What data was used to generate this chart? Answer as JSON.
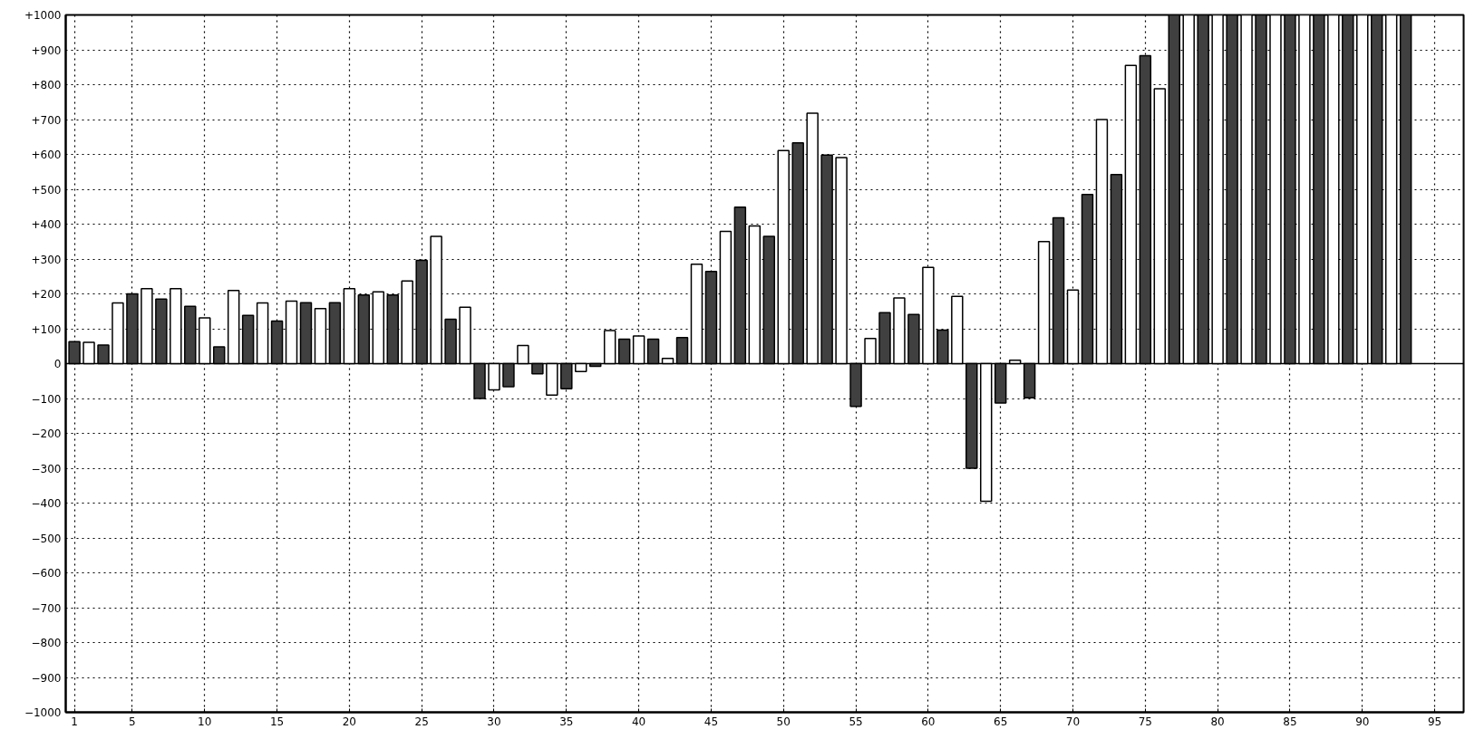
{
  "chart_data": {
    "type": "bar",
    "x": [
      1,
      2,
      3,
      4,
      5,
      6,
      7,
      8,
      9,
      10,
      11,
      12,
      13,
      14,
      15,
      16,
      17,
      18,
      19,
      20,
      21,
      22,
      23,
      24,
      25,
      26,
      27,
      28,
      29,
      30,
      31,
      32,
      33,
      34,
      35,
      36,
      37,
      38,
      39,
      40,
      41,
      42,
      43,
      44,
      45,
      46,
      47,
      48,
      49,
      50,
      51,
      52,
      53,
      54,
      55,
      56,
      57,
      58,
      59,
      60,
      61,
      62,
      63,
      64,
      65,
      66,
      67,
      68,
      69,
      70,
      71,
      72,
      73,
      74,
      75,
      76,
      77,
      78,
      79,
      80,
      81,
      82,
      83,
      84,
      85,
      86,
      87,
      88,
      89,
      90,
      91,
      92,
      93
    ],
    "values": [
      63,
      61,
      53,
      174,
      200,
      215,
      185,
      215,
      164,
      131,
      48,
      210,
      138,
      174,
      122,
      179,
      175,
      158,
      175,
      215,
      197,
      206,
      197,
      237,
      296,
      365,
      127,
      162,
      -100,
      -75,
      -66,
      52,
      -29,
      -90,
      -72,
      -23,
      -8,
      95,
      70,
      79,
      70,
      15,
      75,
      285,
      264,
      379,
      449,
      395,
      365,
      611,
      633,
      718,
      598,
      591,
      -123,
      72,
      146,
      188,
      141,
      276,
      96,
      193,
      -300,
      -395,
      -113,
      10,
      -98,
      350,
      418,
      211,
      485,
      700,
      542,
      855,
      883,
      788,
      1000,
      1000,
      1000,
      1000,
      1000,
      1000,
      1000,
      1000,
      1000,
      1000,
      1000,
      1000,
      1000,
      1000,
      1000,
      1000,
      1000
    ],
    "colors": [
      "#404040",
      "#ffffff",
      "#404040",
      "#ffffff",
      "#404040",
      "#ffffff",
      "#404040",
      "#ffffff",
      "#404040",
      "#ffffff",
      "#404040",
      "#ffffff",
      "#404040",
      "#ffffff",
      "#404040",
      "#ffffff",
      "#404040",
      "#ffffff",
      "#404040",
      "#ffffff",
      "#404040",
      "#ffffff",
      "#404040",
      "#ffffff",
      "#404040",
      "#ffffff",
      "#404040",
      "#ffffff",
      "#404040",
      "#ffffff",
      "#404040",
      "#ffffff",
      "#404040",
      "#ffffff",
      "#404040",
      "#ffffff",
      "#404040",
      "#ffffff",
      "#404040",
      "#ffffff",
      "#404040",
      "#ffffff",
      "#404040",
      "#ffffff",
      "#404040",
      "#ffffff",
      "#404040",
      "#ffffff",
      "#404040",
      "#ffffff",
      "#404040",
      "#ffffff",
      "#404040",
      "#ffffff",
      "#404040",
      "#ffffff",
      "#404040",
      "#ffffff",
      "#404040",
      "#ffffff",
      "#404040",
      "#ffffff",
      "#404040",
      "#ffffff",
      "#404040",
      "#ffffff",
      "#404040",
      "#ffffff",
      "#404040",
      "#ffffff",
      "#404040",
      "#ffffff",
      "#404040",
      "#ffffff",
      "#404040",
      "#ffffff",
      "#404040",
      "#ffffff",
      "#404040",
      "#ffffff",
      "#404040",
      "#ffffff",
      "#404040",
      "#ffffff",
      "#404040",
      "#ffffff",
      "#404040",
      "#ffffff",
      "#404040",
      "#ffffff",
      "#404040",
      "#ffffff",
      "#404040"
    ],
    "xlim": [
      0.4,
      97
    ],
    "xticks": [
      1,
      5,
      10,
      15,
      20,
      25,
      30,
      35,
      40,
      45,
      50,
      55,
      60,
      65,
      70,
      75,
      80,
      85,
      90,
      95
    ],
    "ylim": [
      -1000,
      1000
    ],
    "yticks": [
      -1000,
      -900,
      -800,
      -700,
      -600,
      -500,
      -400,
      -300,
      -200,
      -100,
      0,
      {
        "value": 100,
        "label": "+100"
      },
      {
        "value": 200,
        "label": "+200"
      },
      {
        "value": 300,
        "label": "+300"
      },
      {
        "value": 400,
        "label": "+400"
      },
      {
        "value": 500,
        "label": "+500"
      },
      {
        "value": 600,
        "label": "+600"
      },
      {
        "value": 700,
        "label": "+700"
      },
      {
        "value": 800,
        "label": "+800"
      },
      {
        "value": 900,
        "label": "+900"
      },
      {
        "value": 1000,
        "label": "+1000"
      }
    ],
    "grid": true,
    "line_style": "dotted"
  }
}
